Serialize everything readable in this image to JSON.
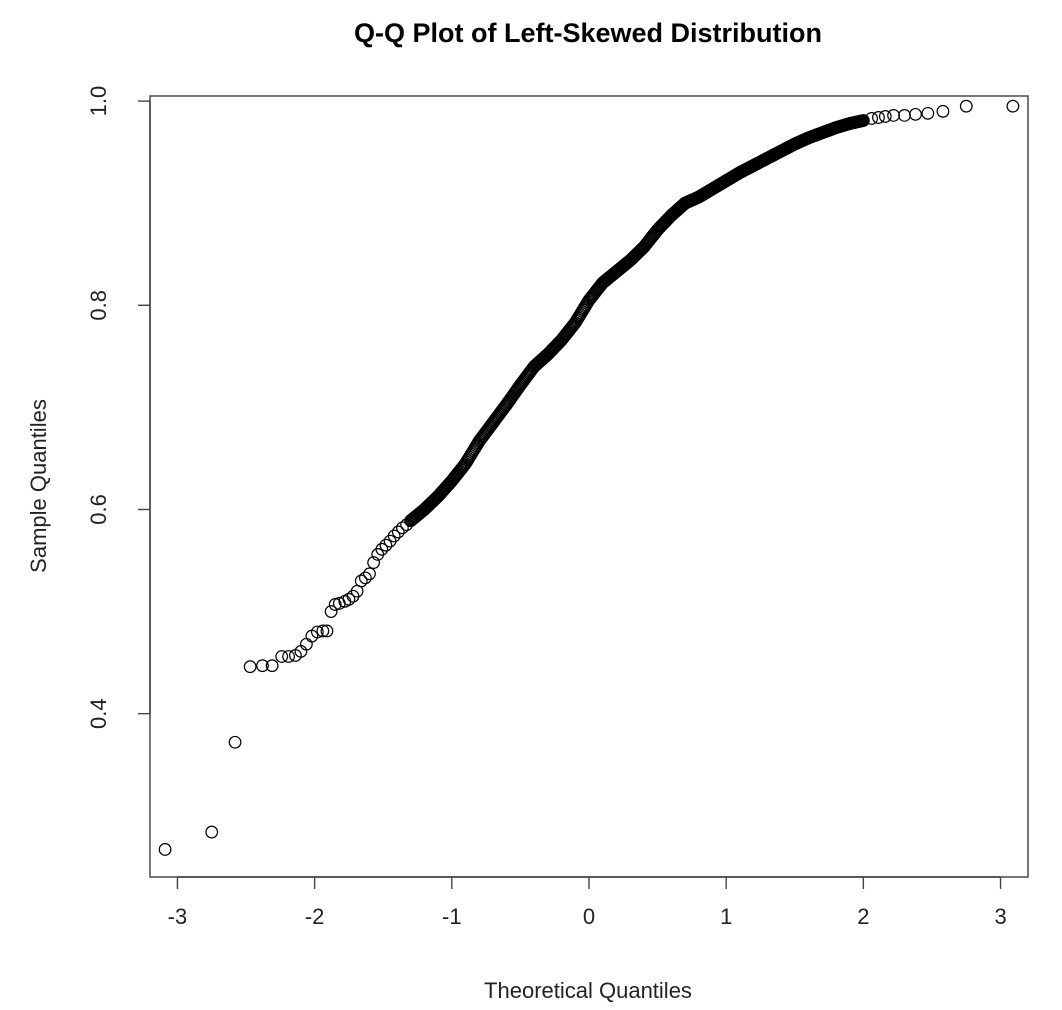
{
  "chart_data": {
    "type": "scatter",
    "title": "Q-Q Plot of Left-Skewed Distribution",
    "xlabel": "Theoretical Quantiles",
    "ylabel": "Sample Quantiles",
    "xlim": [
      -3.2,
      3.2
    ],
    "ylim": [
      0.24,
      1.005
    ],
    "x_ticks": [
      -3,
      -2,
      -1,
      0,
      1,
      2,
      3
    ],
    "x_tick_labels": [
      "-3",
      "-2",
      "-1",
      "0",
      "1",
      "2",
      "3"
    ],
    "y_ticks": [
      0.4,
      0.6,
      0.8,
      1.0
    ],
    "y_tick_labels": [
      "0.4",
      "0.6",
      "0.8",
      "1.0"
    ],
    "grid": false,
    "marker": "open-circle",
    "series": [
      {
        "name": "sample",
        "points": [
          [
            -3.09,
            0.267
          ],
          [
            -2.75,
            0.284
          ],
          [
            -2.58,
            0.372
          ],
          [
            -2.47,
            0.446
          ],
          [
            -2.38,
            0.447
          ],
          [
            -2.31,
            0.447
          ],
          [
            -2.24,
            0.456
          ],
          [
            -2.19,
            0.456
          ],
          [
            -2.14,
            0.457
          ],
          [
            -2.1,
            0.461
          ],
          [
            -2.06,
            0.468
          ],
          [
            -2.02,
            0.476
          ],
          [
            -1.98,
            0.48
          ],
          [
            -1.94,
            0.481
          ],
          [
            -1.91,
            0.481
          ],
          [
            -1.88,
            0.5
          ],
          [
            -1.85,
            0.507
          ],
          [
            -1.82,
            0.508
          ],
          [
            -1.78,
            0.51
          ],
          [
            -1.75,
            0.512
          ],
          [
            -1.72,
            0.515
          ],
          [
            -1.69,
            0.52
          ],
          [
            -1.66,
            0.53
          ],
          [
            -1.63,
            0.533
          ],
          [
            -1.6,
            0.537
          ],
          [
            -1.57,
            0.548
          ],
          [
            -1.54,
            0.556
          ],
          [
            -1.51,
            0.561
          ],
          [
            -1.48,
            0.565
          ],
          [
            -1.45,
            0.569
          ],
          [
            -1.42,
            0.574
          ],
          [
            -1.39,
            0.578
          ],
          [
            -1.36,
            0.582
          ],
          [
            -1.33,
            0.585
          ]
        ],
        "curve_points": [
          [
            -1.3,
            0.589
          ],
          [
            -1.2,
            0.6
          ],
          [
            -1.1,
            0.613
          ],
          [
            -1.0,
            0.628
          ],
          [
            -0.9,
            0.645
          ],
          [
            -0.8,
            0.667
          ],
          [
            -0.7,
            0.685
          ],
          [
            -0.6,
            0.703
          ],
          [
            -0.5,
            0.722
          ],
          [
            -0.4,
            0.74
          ],
          [
            -0.3,
            0.752
          ],
          [
            -0.2,
            0.766
          ],
          [
            -0.1,
            0.783
          ],
          [
            0.0,
            0.805
          ],
          [
            0.1,
            0.822
          ],
          [
            0.2,
            0.833
          ],
          [
            0.3,
            0.844
          ],
          [
            0.4,
            0.857
          ],
          [
            0.5,
            0.874
          ],
          [
            0.6,
            0.888
          ],
          [
            0.7,
            0.9
          ],
          [
            0.8,
            0.906
          ],
          [
            0.9,
            0.914
          ],
          [
            1.0,
            0.922
          ],
          [
            1.1,
            0.93
          ],
          [
            1.2,
            0.937
          ],
          [
            1.3,
            0.944
          ],
          [
            1.4,
            0.951
          ],
          [
            1.5,
            0.958
          ],
          [
            1.6,
            0.964
          ],
          [
            1.7,
            0.969
          ],
          [
            1.8,
            0.974
          ],
          [
            1.9,
            0.978
          ],
          [
            2.0,
            0.981
          ]
        ],
        "tail_points": [
          [
            2.06,
            0.983
          ],
          [
            2.11,
            0.984
          ],
          [
            2.16,
            0.985
          ],
          [
            2.22,
            0.986
          ],
          [
            2.3,
            0.986
          ],
          [
            2.38,
            0.987
          ],
          [
            2.47,
            0.988
          ],
          [
            2.58,
            0.99
          ],
          [
            2.75,
            0.995
          ],
          [
            3.09,
            0.995
          ]
        ]
      }
    ]
  }
}
